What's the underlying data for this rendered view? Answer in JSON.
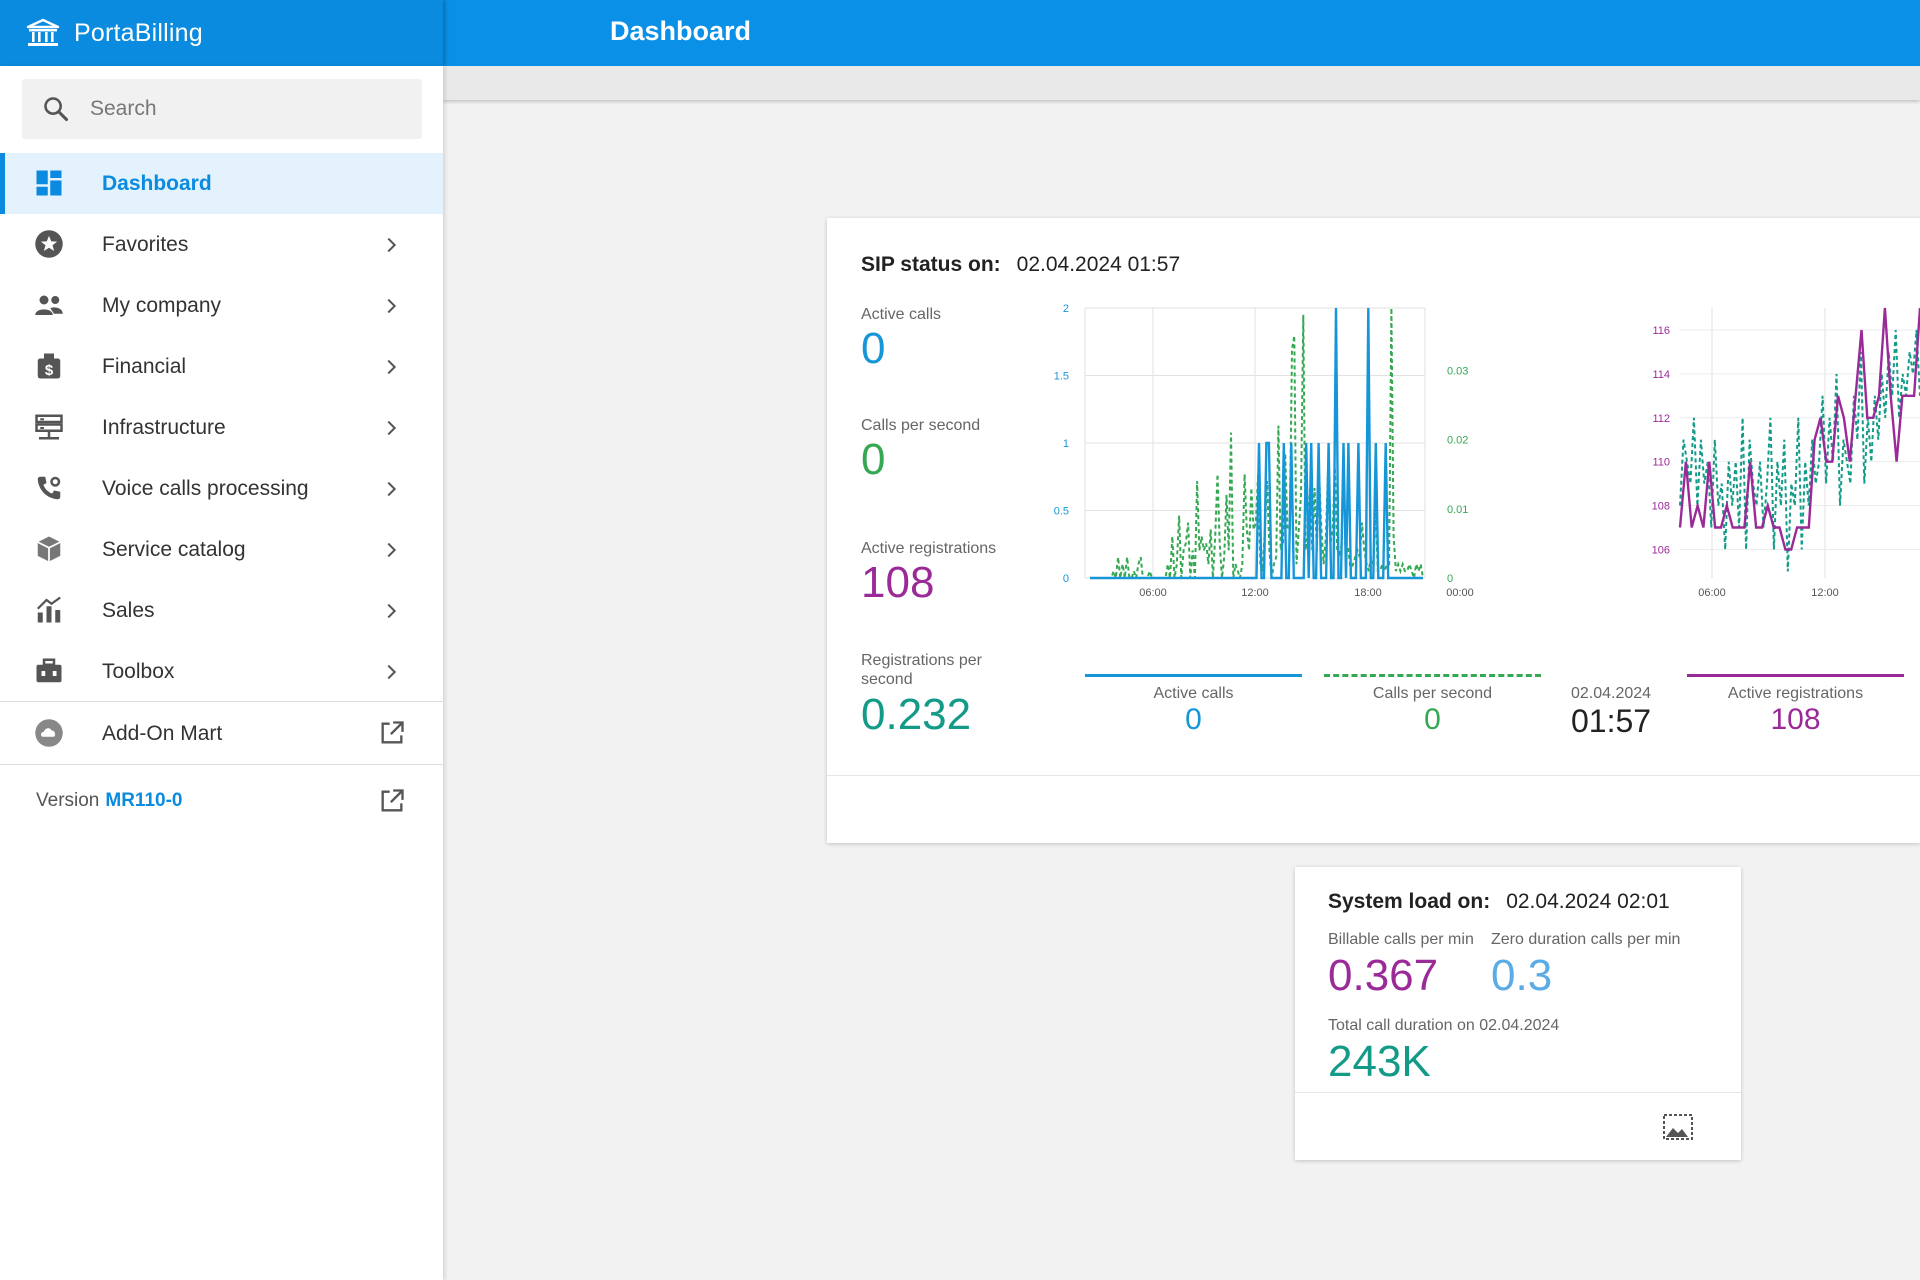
{
  "app": {
    "brand": "PortaBilling",
    "title": "Dashboard"
  },
  "search": {
    "placeholder": "Search"
  },
  "sidebar": {
    "items": [
      {
        "label": "Dashboard",
        "icon": "dashboard-icon",
        "active": true
      },
      {
        "label": "Favorites",
        "icon": "star-icon"
      },
      {
        "label": "My company",
        "icon": "people-icon"
      },
      {
        "label": "Financial",
        "icon": "money-bag-icon"
      },
      {
        "label": "Infrastructure",
        "icon": "server-icon"
      },
      {
        "label": "Voice calls processing",
        "icon": "phone-gear-icon"
      },
      {
        "label": "Service catalog",
        "icon": "box-icon"
      },
      {
        "label": "Sales",
        "icon": "bar-chart-icon"
      },
      {
        "label": "Toolbox",
        "icon": "toolbox-icon"
      }
    ],
    "addon": {
      "label": "Add-On Mart",
      "icon": "cloud-icon"
    },
    "version": {
      "label": "Version",
      "value": "MR110-0"
    }
  },
  "colors": {
    "brand": "#0b8be0",
    "active_calls": "#1696d8",
    "cps": "#35a852",
    "registrations": "#9b2a99",
    "rps": "#139b88"
  },
  "sip": {
    "header_label": "SIP status on:",
    "header_value": "02.04.2024 01:57",
    "active_calls_label": "Active calls",
    "active_calls": "0",
    "cps_label": "Calls per second",
    "cps": "0",
    "registrations_label": "Active registrations",
    "registrations": "108",
    "rps_label": "Registrations per second",
    "rps": "0.232",
    "legend_active_calls": "Active calls",
    "legend_active_calls_value": "0",
    "legend_cps": "Calls per second",
    "legend_cps_value": "0",
    "legend_date": "02.04.2024",
    "legend_time": "01:57",
    "legend_registrations": "Active registrations",
    "legend_registrations_value": "108"
  },
  "chart_data": [
    {
      "type": "line",
      "x_ticks": [
        "06:00",
        "12:00",
        "18:00",
        "00:00"
      ],
      "y_left_ticks": [
        "0",
        "0.5",
        "1",
        "1.5",
        "2"
      ],
      "y_right_ticks": [
        "0",
        "0.01",
        "0.02",
        "0.03"
      ],
      "ylim_left": [
        0,
        2
      ],
      "ylim_right": [
        0,
        0.039
      ],
      "series": [
        {
          "name": "Active calls",
          "axis": "left",
          "style": "solid",
          "values": [
            0,
            0,
            0,
            0,
            0,
            0,
            0,
            0,
            0,
            0,
            0,
            0,
            0,
            0,
            0,
            0,
            0,
            0,
            0,
            0,
            0,
            0,
            0,
            0,
            0,
            0,
            0,
            0,
            0,
            0,
            0,
            0,
            0,
            0,
            0,
            0,
            0,
            0,
            0,
            0,
            0,
            0,
            0,
            0,
            0,
            0,
            0,
            0,
            0,
            0,
            0,
            0,
            0,
            0,
            0,
            0,
            0,
            0,
            0,
            0,
            0,
            0,
            0,
            0,
            0,
            0,
            0,
            0,
            1,
            0,
            0,
            1,
            1,
            0,
            0,
            0,
            0,
            0,
            1,
            0,
            0,
            1,
            0,
            0,
            0,
            0,
            0,
            1,
            0,
            1,
            0,
            0,
            1,
            0,
            0,
            0,
            1,
            0,
            0,
            2,
            0,
            0,
            1,
            0,
            1,
            0,
            0,
            0,
            1,
            0,
            0,
            0,
            2,
            0,
            0,
            1,
            0,
            0,
            0,
            1,
            0,
            0,
            0,
            0,
            0,
            0,
            0,
            0,
            0,
            0,
            0,
            0,
            0,
            0,
            0
          ]
        },
        {
          "name": "Calls per second",
          "axis": "right",
          "style": "dashed",
          "values": [
            0,
            0,
            0,
            0,
            0,
            0,
            0.001,
            0,
            0.003,
            0,
            0.002,
            0,
            0.003,
            0,
            0,
            0.001,
            0,
            0.002,
            0.003,
            0,
            0,
            0,
            0.001,
            0,
            0,
            0,
            0,
            0,
            0,
            0,
            0.002,
            0,
            0.006,
            0,
            0.002,
            0.009,
            0,
            0.004,
            0.005,
            0.008,
            0,
            0.004,
            0,
            0.014,
            0.004,
            0.006,
            0.004,
            0.005,
            0.002,
            0.007,
            0,
            0.006,
            0.015,
            0.005,
            0,
            0.003,
            0.012,
            0.004,
            0.021,
            0,
            0.002,
            0.001,
            0,
            0.002,
            0.015,
            0.007,
            0.004,
            0.013,
            0.007,
            0.008,
            0.015,
            0.002,
            0.001,
            0.007,
            0.014,
            0.004,
            0,
            0.002,
            0.003,
            0.022,
            0.004,
            0.005,
            0.018,
            0.007,
            0.007,
            0.033,
            0.035,
            0.002,
            0.007,
            0.012,
            0.038,
            0.004,
            0.006,
            0.013,
            0.004,
            0.013,
            0.004,
            0.015,
            0.007,
            0.002,
            0.006,
            0.016,
            0.005,
            0.007,
            0.016,
            0.004,
            0.003,
            0.005,
            0.005,
            0.005,
            0.004,
            0.001,
            0.002,
            0.003,
            0.004,
            0.003,
            0.008,
            0.004,
            0.002,
            0.001,
            0.003,
            0.002,
            0.01,
            0.001,
            0.001,
            0.002,
            0.001,
            0.002,
            0.002,
            0.039,
            0.006,
            0.001,
            0.002,
            0.001,
            0.002,
            0.001,
            0.001,
            0.002,
            0.001,
            0,
            0.002,
            0.001,
            0.002,
            0
          ]
        }
      ]
    },
    {
      "type": "line",
      "x_ticks": [
        "06:00",
        "12:00"
      ],
      "y_ticks": [
        "106",
        "108",
        "110",
        "112",
        "114",
        "116"
      ],
      "ylim": [
        104.7,
        117
      ],
      "series": [
        {
          "name": "Active registrations",
          "style": "solid",
          "values": [
            107,
            110,
            107,
            108,
            107,
            110,
            107,
            107,
            108,
            107,
            107,
            107,
            110,
            107,
            107,
            108,
            107,
            107,
            106,
            106,
            107,
            107,
            107,
            111,
            112,
            110,
            110,
            113,
            112,
            110,
            113,
            116,
            112,
            112,
            113,
            117,
            113,
            110,
            113,
            113,
            113,
            117
          ]
        },
        {
          "name": "Registrations per second",
          "style": "dashed",
          "values": [
            108,
            111,
            110,
            109,
            112,
            108,
            111,
            109,
            110,
            107,
            111,
            108,
            109,
            106,
            110,
            108,
            110,
            107,
            112,
            106,
            111,
            109,
            108,
            110,
            107,
            109,
            112,
            106,
            110,
            108,
            111,
            105,
            109,
            108,
            112,
            106,
            110,
            108,
            111,
            109,
            110,
            113,
            109,
            112,
            110,
            114,
            108,
            111,
            110,
            109,
            113,
            111,
            115,
            109,
            112,
            110,
            113,
            111,
            114,
            112,
            115,
            113,
            116,
            112,
            114,
            113,
            115,
            114,
            116,
            113
          ]
        }
      ]
    }
  ],
  "load": {
    "header_label": "System load on:",
    "header_value": "02.04.2024 02:01",
    "billable_label": "Billable calls per min",
    "billable": "0.367",
    "zero_label": "Zero duration calls per min",
    "zero": "0.3",
    "total_label": "Total call duration on 02.04.2024",
    "total": "243K"
  }
}
